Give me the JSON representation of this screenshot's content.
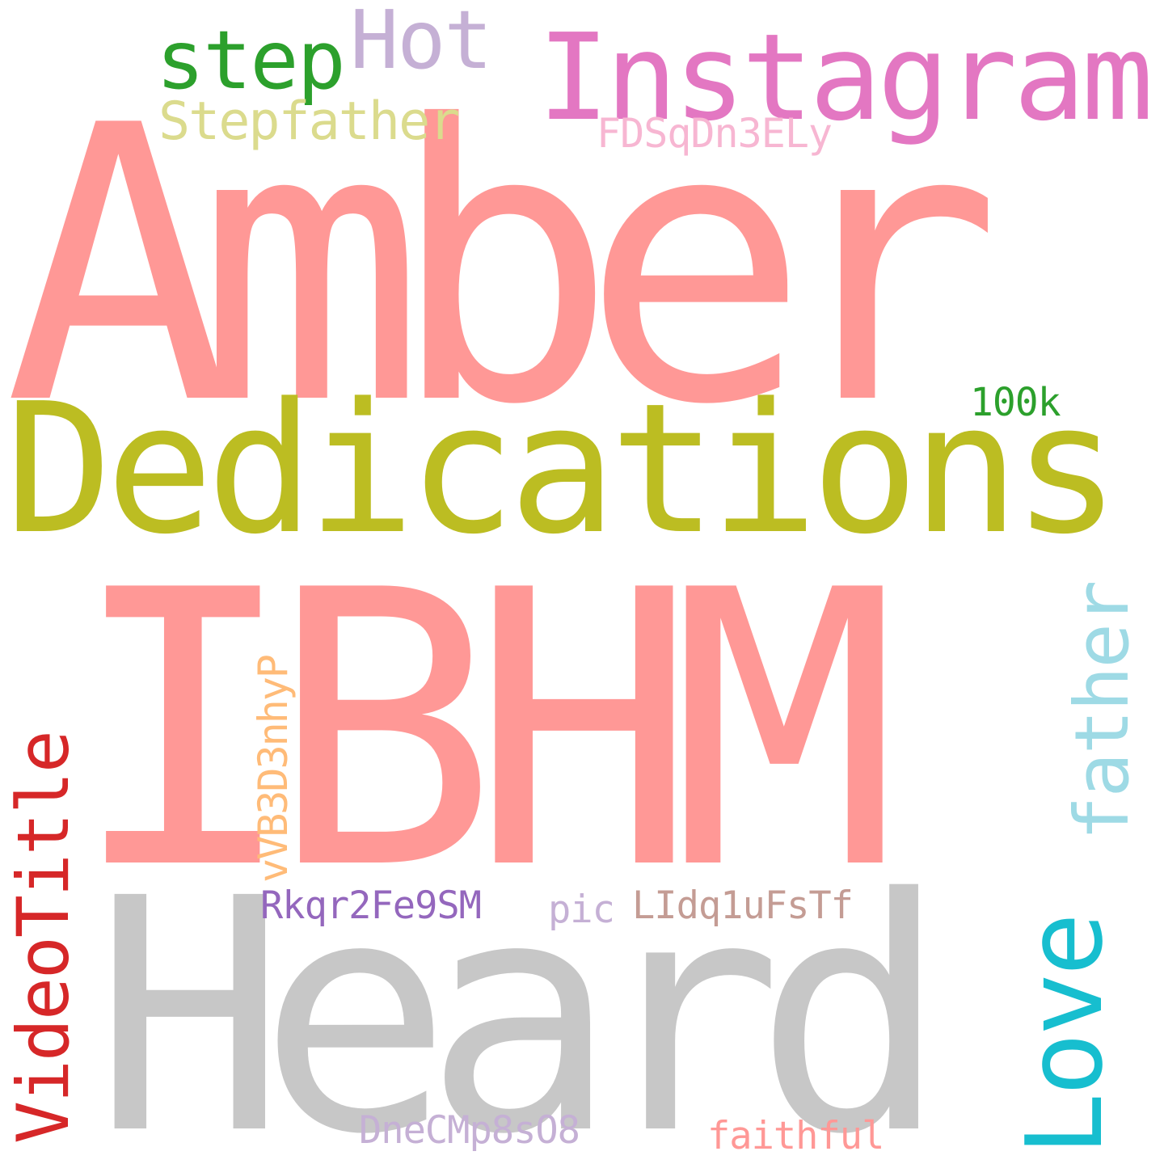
{
  "words": {
    "amber": {
      "text": "Amber",
      "color": "#ff9896"
    },
    "dedications": {
      "text": "Dedications",
      "color": "#bcbd22"
    },
    "ibhm": {
      "text": "IBHM",
      "color": "#ff9896"
    },
    "heard": {
      "text": "Heard",
      "color": "#c7c7c7"
    },
    "instagram": {
      "text": "Instagram",
      "color": "#e377c2"
    },
    "step": {
      "text": "step",
      "color": "#2ca02c"
    },
    "hot": {
      "text": "Hot",
      "color": "#c5b0d5"
    },
    "stepfather": {
      "text": "Stepfather",
      "color": "#dbdb8d"
    },
    "fdsq": {
      "text": "FDSqDn3ELy",
      "color": "#f7b6d2"
    },
    "hundredk": {
      "text": "100k",
      "color": "#2ca02c"
    },
    "videotitle": {
      "text": "VideoTitle",
      "color": "#d62728"
    },
    "vvb": {
      "text": "vVB3D3nhyP",
      "color": "#ffbb78"
    },
    "father": {
      "text": "father",
      "color": "#9edae5"
    },
    "love": {
      "text": "Love",
      "color": "#17becf"
    },
    "rkqr": {
      "text": "Rkqr2Fe9SM",
      "color": "#9467bd"
    },
    "pic": {
      "text": "pic",
      "color": "#c5b0d5"
    },
    "lidq": {
      "text": "LIdq1uFsTf",
      "color": "#c49c94"
    },
    "dnec": {
      "text": "DneCMp8sO8",
      "color": "#c5b0d5"
    },
    "faithful": {
      "text": "faithful",
      "color": "#ff9896"
    }
  }
}
